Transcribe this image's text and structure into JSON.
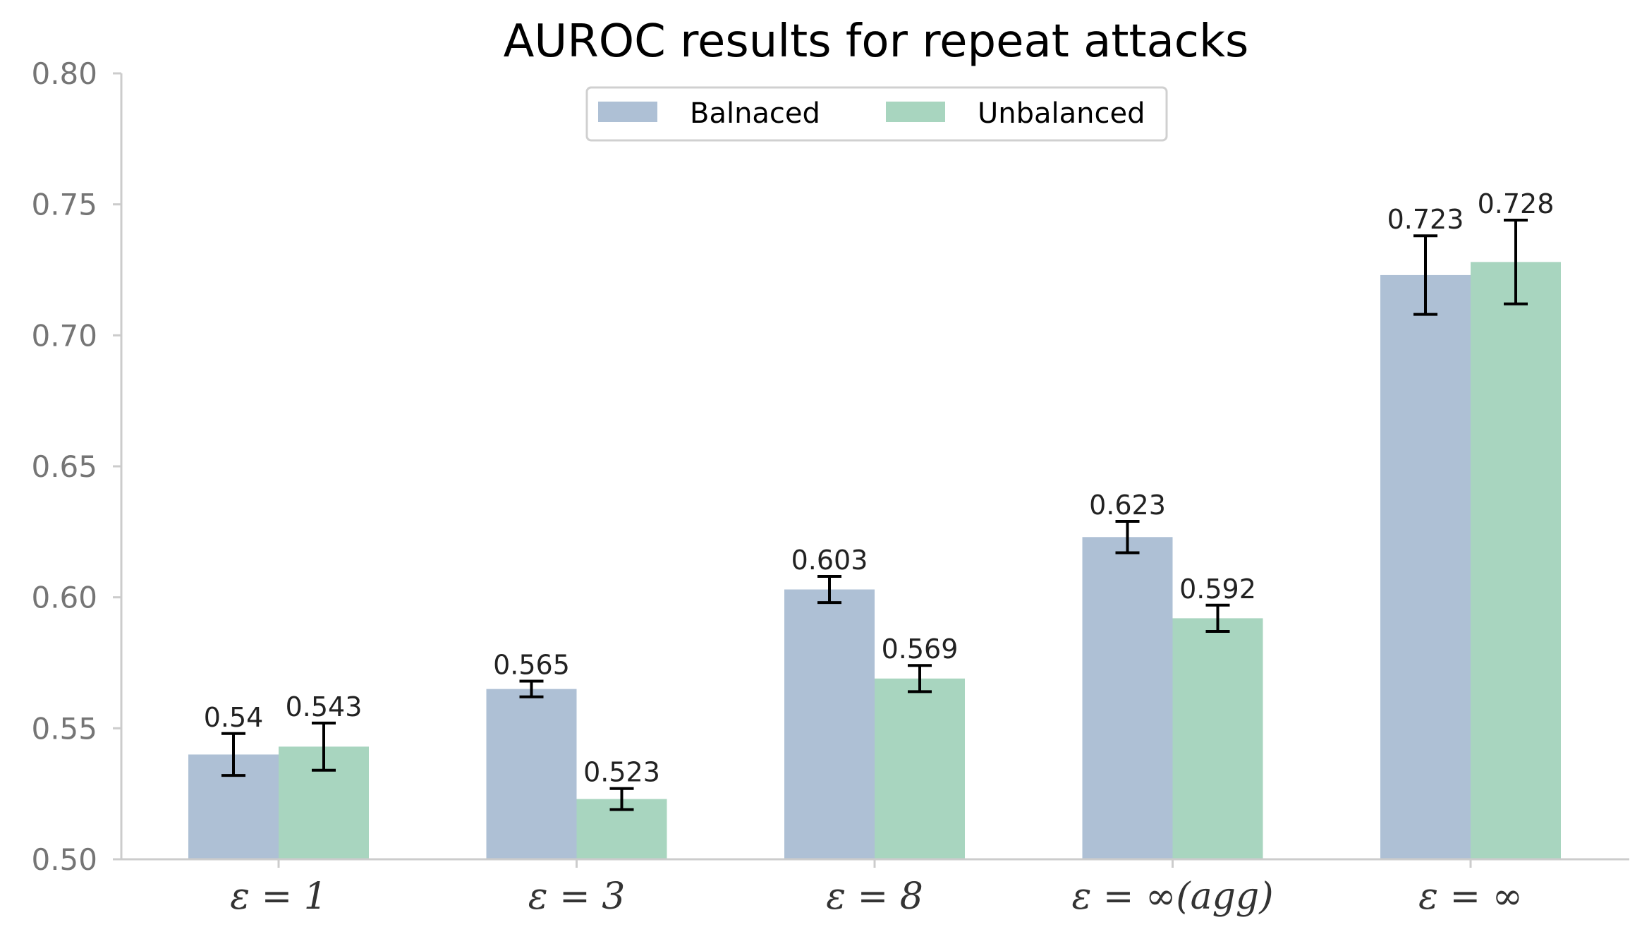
{
  "chart_data": {
    "type": "bar",
    "title": "AUROC results for repeat attacks",
    "xlabel": "",
    "ylabel": "",
    "categories": [
      "ε = 1",
      "ε = 3",
      "ε = 8",
      "ε = ∞(agg)",
      "ε = ∞"
    ],
    "series": [
      {
        "name": "Balnaced",
        "color": "#aec0d5",
        "values": [
          0.54,
          0.565,
          0.603,
          0.623,
          0.723
        ],
        "error": [
          0.008,
          0.003,
          0.005,
          0.006,
          0.015
        ],
        "labels": [
          "0.54",
          "0.565",
          "0.603",
          "0.623",
          "0.723"
        ]
      },
      {
        "name": "Unbalanced",
        "color": "#a8d5bf",
        "values": [
          0.543,
          0.523,
          0.569,
          0.592,
          0.728
        ],
        "error": [
          0.009,
          0.004,
          0.005,
          0.005,
          0.016
        ],
        "labels": [
          "0.543",
          "0.523",
          "0.569",
          "0.592",
          "0.728"
        ]
      }
    ],
    "ylim": [
      0.5,
      0.8
    ],
    "yticks": [
      "0.50",
      "0.55",
      "0.60",
      "0.65",
      "0.70",
      "0.75",
      "0.80"
    ],
    "grid": false,
    "legend_position": "top-center"
  }
}
